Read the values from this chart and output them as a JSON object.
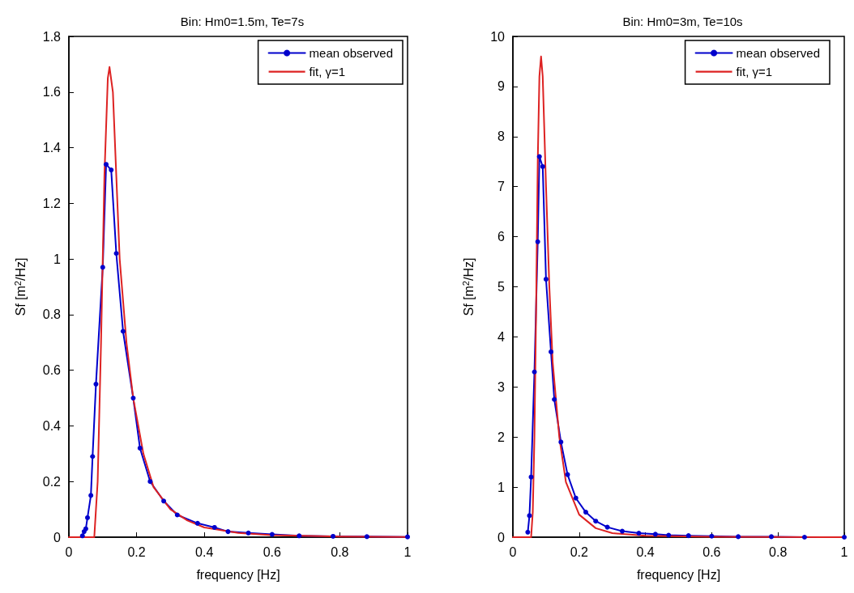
{
  "chart_data": [
    {
      "type": "line",
      "title": "Bin: Hm0=1.5m, Te=7s",
      "xlabel": "frequency [Hz]",
      "ylabel": "Sf [m$^{2}$/Hz]",
      "xlim": [
        0,
        1
      ],
      "xticks": [
        0,
        0.2,
        0.4,
        0.6,
        0.8,
        1
      ],
      "ylim": [
        0,
        1.8
      ],
      "yticks": [
        0,
        0.2,
        0.4,
        0.6,
        0.8,
        1,
        1.2,
        1.4,
        1.6,
        1.8
      ],
      "grid": false,
      "legend": "top right",
      "series": [
        {
          "name": "mean observed",
          "color": "#0000cc",
          "marker": "circle",
          "x": [
            0.04,
            0.045,
            0.05,
            0.055,
            0.065,
            0.07,
            0.08,
            0.1,
            0.11,
            0.125,
            0.14,
            0.16,
            0.19,
            0.21,
            0.24,
            0.28,
            0.32,
            0.38,
            0.43,
            0.47,
            0.53,
            0.6,
            0.68,
            0.78,
            0.88,
            1.0
          ],
          "values": [
            0.005,
            0.02,
            0.03,
            0.07,
            0.15,
            0.29,
            0.55,
            0.97,
            1.34,
            1.32,
            1.02,
            0.74,
            0.5,
            0.32,
            0.2,
            0.13,
            0.08,
            0.05,
            0.035,
            0.02,
            0.015,
            0.01,
            0.005,
            0.003,
            0.002,
            0.001
          ]
        },
        {
          "name": "fit, γ=1",
          "color": "#dd2222",
          "marker": "none",
          "x": [
            0,
            0.075,
            0.085,
            0.095,
            0.105,
            0.115,
            0.12,
            0.13,
            0.14,
            0.15,
            0.17,
            0.19,
            0.22,
            0.25,
            0.3,
            0.35,
            0.4,
            0.5,
            0.6,
            0.8,
            1.0
          ],
          "values": [
            0,
            0,
            0.2,
            0.7,
            1.3,
            1.65,
            1.69,
            1.6,
            1.3,
            1.0,
            0.7,
            0.5,
            0.3,
            0.18,
            0.1,
            0.06,
            0.035,
            0.015,
            0.007,
            0.002,
            0.001
          ]
        }
      ]
    },
    {
      "type": "line",
      "title": "Bin: Hm0=3m, Te=10s",
      "xlabel": "frequency [Hz]",
      "ylabel": "Sf [m$^{2}$/Hz]",
      "xlim": [
        0,
        1
      ],
      "xticks": [
        0,
        0.2,
        0.4,
        0.6,
        0.8,
        1
      ],
      "ylim": [
        0,
        10
      ],
      "yticks": [
        0,
        1,
        2,
        3,
        4,
        5,
        6,
        7,
        8,
        9,
        10
      ],
      "grid": false,
      "legend": "top right",
      "series": [
        {
          "name": "mean observed",
          "color": "#0000cc",
          "marker": "circle",
          "x": [
            0.045,
            0.05,
            0.055,
            0.065,
            0.075,
            0.08,
            0.09,
            0.1,
            0.115,
            0.125,
            0.145,
            0.165,
            0.19,
            0.22,
            0.25,
            0.285,
            0.33,
            0.38,
            0.43,
            0.47,
            0.53,
            0.6,
            0.68,
            0.78,
            0.88,
            1.0
          ],
          "values": [
            0.1,
            0.43,
            1.2,
            3.3,
            5.9,
            7.6,
            7.4,
            5.15,
            3.7,
            2.75,
            1.9,
            1.25,
            0.78,
            0.5,
            0.32,
            0.2,
            0.12,
            0.08,
            0.06,
            0.04,
            0.03,
            0.02,
            0.01,
            0.01,
            0,
            0
          ]
        },
        {
          "name": "fit, γ=1",
          "color": "#dd2222",
          "marker": "none",
          "x": [
            0,
            0.055,
            0.06,
            0.065,
            0.07,
            0.075,
            0.08,
            0.085,
            0.09,
            0.1,
            0.11,
            0.12,
            0.14,
            0.16,
            0.2,
            0.25,
            0.3,
            0.4,
            0.6,
            1.0
          ],
          "values": [
            0,
            0,
            0.5,
            2,
            4.5,
            7.5,
            9.2,
            9.6,
            9.2,
            7,
            5,
            3.5,
            2,
            1.1,
            0.45,
            0.18,
            0.08,
            0.03,
            0.01,
            0
          ]
        }
      ]
    }
  ]
}
